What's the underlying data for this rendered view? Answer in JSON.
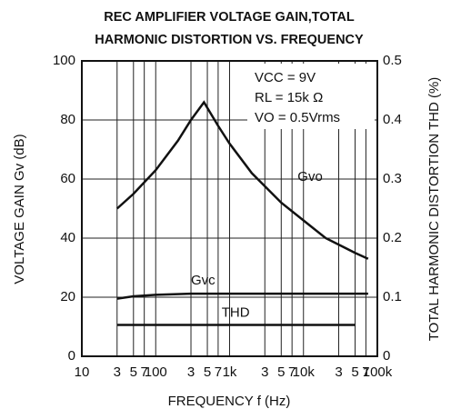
{
  "chart_data": {
    "type": "line",
    "title": [
      "REC AMPLIFIER VOLTAGE GAIN,TOTAL",
      "HARMONIC DISTORTION VS. FREQUENCY"
    ],
    "xlabel": "FREQUENCY  f  (Hz)",
    "ylabel": "VOLTAGE GAIN  Gv (dB)",
    "y2label": "TOTAL  HARMONIC  DISTORTION  THD (%)",
    "annotations": [
      "VCC = 9V",
      "RL = 15k Ω",
      "VO = 0.5Vrms"
    ],
    "xscale": "log",
    "xlim": [
      10,
      100000
    ],
    "xticks": [
      10,
      {
        "value": 30,
        "label": "3"
      },
      {
        "value": 50,
        "label": "5"
      },
      {
        "value": 70,
        "label": "7"
      },
      100,
      {
        "value": 300,
        "label": "3"
      },
      {
        "value": 500,
        "label": "5"
      },
      {
        "value": 700,
        "label": "7"
      },
      {
        "value": 1000,
        "label": "1k"
      },
      {
        "value": 3000,
        "label": "3"
      },
      {
        "value": 5000,
        "label": "5"
      },
      {
        "value": 7000,
        "label": "7"
      },
      {
        "value": 10000,
        "label": "10k"
      },
      {
        "value": 30000,
        "label": "3"
      },
      {
        "value": 50000,
        "label": "5"
      },
      {
        "value": 70000,
        "label": "7"
      },
      {
        "value": 100000,
        "label": "100k"
      }
    ],
    "ylim": [
      0,
      100
    ],
    "yticks": [
      0,
      20,
      40,
      60,
      80,
      100
    ],
    "y2lim": [
      0,
      0.5
    ],
    "y2ticks": [
      0,
      0.1,
      0.2,
      0.3,
      0.4,
      0.5
    ],
    "grid": true,
    "series": [
      {
        "name": "Gvo",
        "color": "#111111",
        "x": [
          30,
          50,
          100,
          200,
          300,
          450,
          700,
          1000,
          2000,
          5000,
          10000,
          20000,
          50000,
          75000
        ],
        "values": [
          50,
          55,
          63,
          73,
          80,
          86,
          78,
          72,
          62,
          52,
          46,
          40,
          35,
          33
        ]
      },
      {
        "name": "Gvc",
        "color": "#111111",
        "x": [
          30,
          50,
          100,
          300,
          1000,
          10000,
          75000
        ],
        "values": [
          19.5,
          20.3,
          20.8,
          21.2,
          21.2,
          21.2,
          21.2
        ]
      },
      {
        "name": "THD",
        "color": "#111111",
        "axis": "y2",
        "x": [
          30,
          50000
        ],
        "values": [
          0.053,
          0.053
        ]
      }
    ]
  }
}
